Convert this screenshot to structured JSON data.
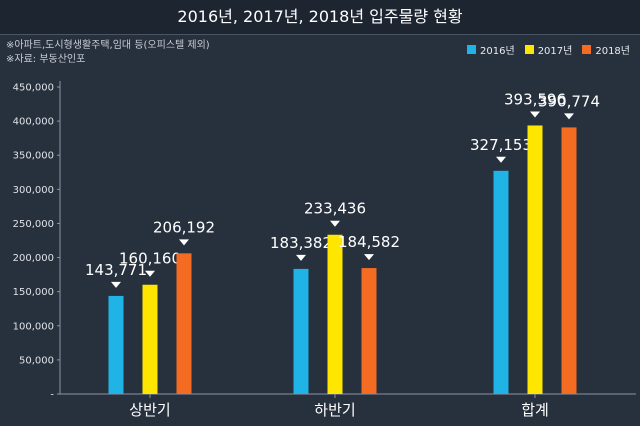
{
  "title": "2016년, 2017년, 2018년 입주물량 현황",
  "notes": [
    "※아파트,도시형생활주택,임대 등(오피스텔 제외)",
    "※자료: 부동산인포"
  ],
  "colors": {
    "background": "#27303d",
    "s2016": "#1fb3e6",
    "s2017": "#ffe600",
    "s2018": "#f36c21"
  },
  "chart_data": {
    "type": "bar",
    "categories": [
      "상반기",
      "하반기",
      "합계"
    ],
    "series": [
      {
        "name": "2016년",
        "values": [
          143771,
          183382,
          327153
        ],
        "labels": [
          "143,771",
          "183,382",
          "327,153"
        ]
      },
      {
        "name": "2017년",
        "values": [
          160160,
          233436,
          393596
        ],
        "labels": [
          "160,160",
          "233,436",
          "393,596"
        ]
      },
      {
        "name": "2018년",
        "values": [
          206192,
          184582,
          390774
        ],
        "labels": [
          "206,192",
          "184,582",
          "390,774"
        ]
      }
    ],
    "y_ticks": [
      "-",
      "50,000",
      "100,000",
      "150,000",
      "200,000",
      "250,000",
      "300,000",
      "350,000",
      "400,000",
      "450,000"
    ],
    "ylim": [
      0,
      450000
    ],
    "legend": "top-right",
    "grid": false
  }
}
